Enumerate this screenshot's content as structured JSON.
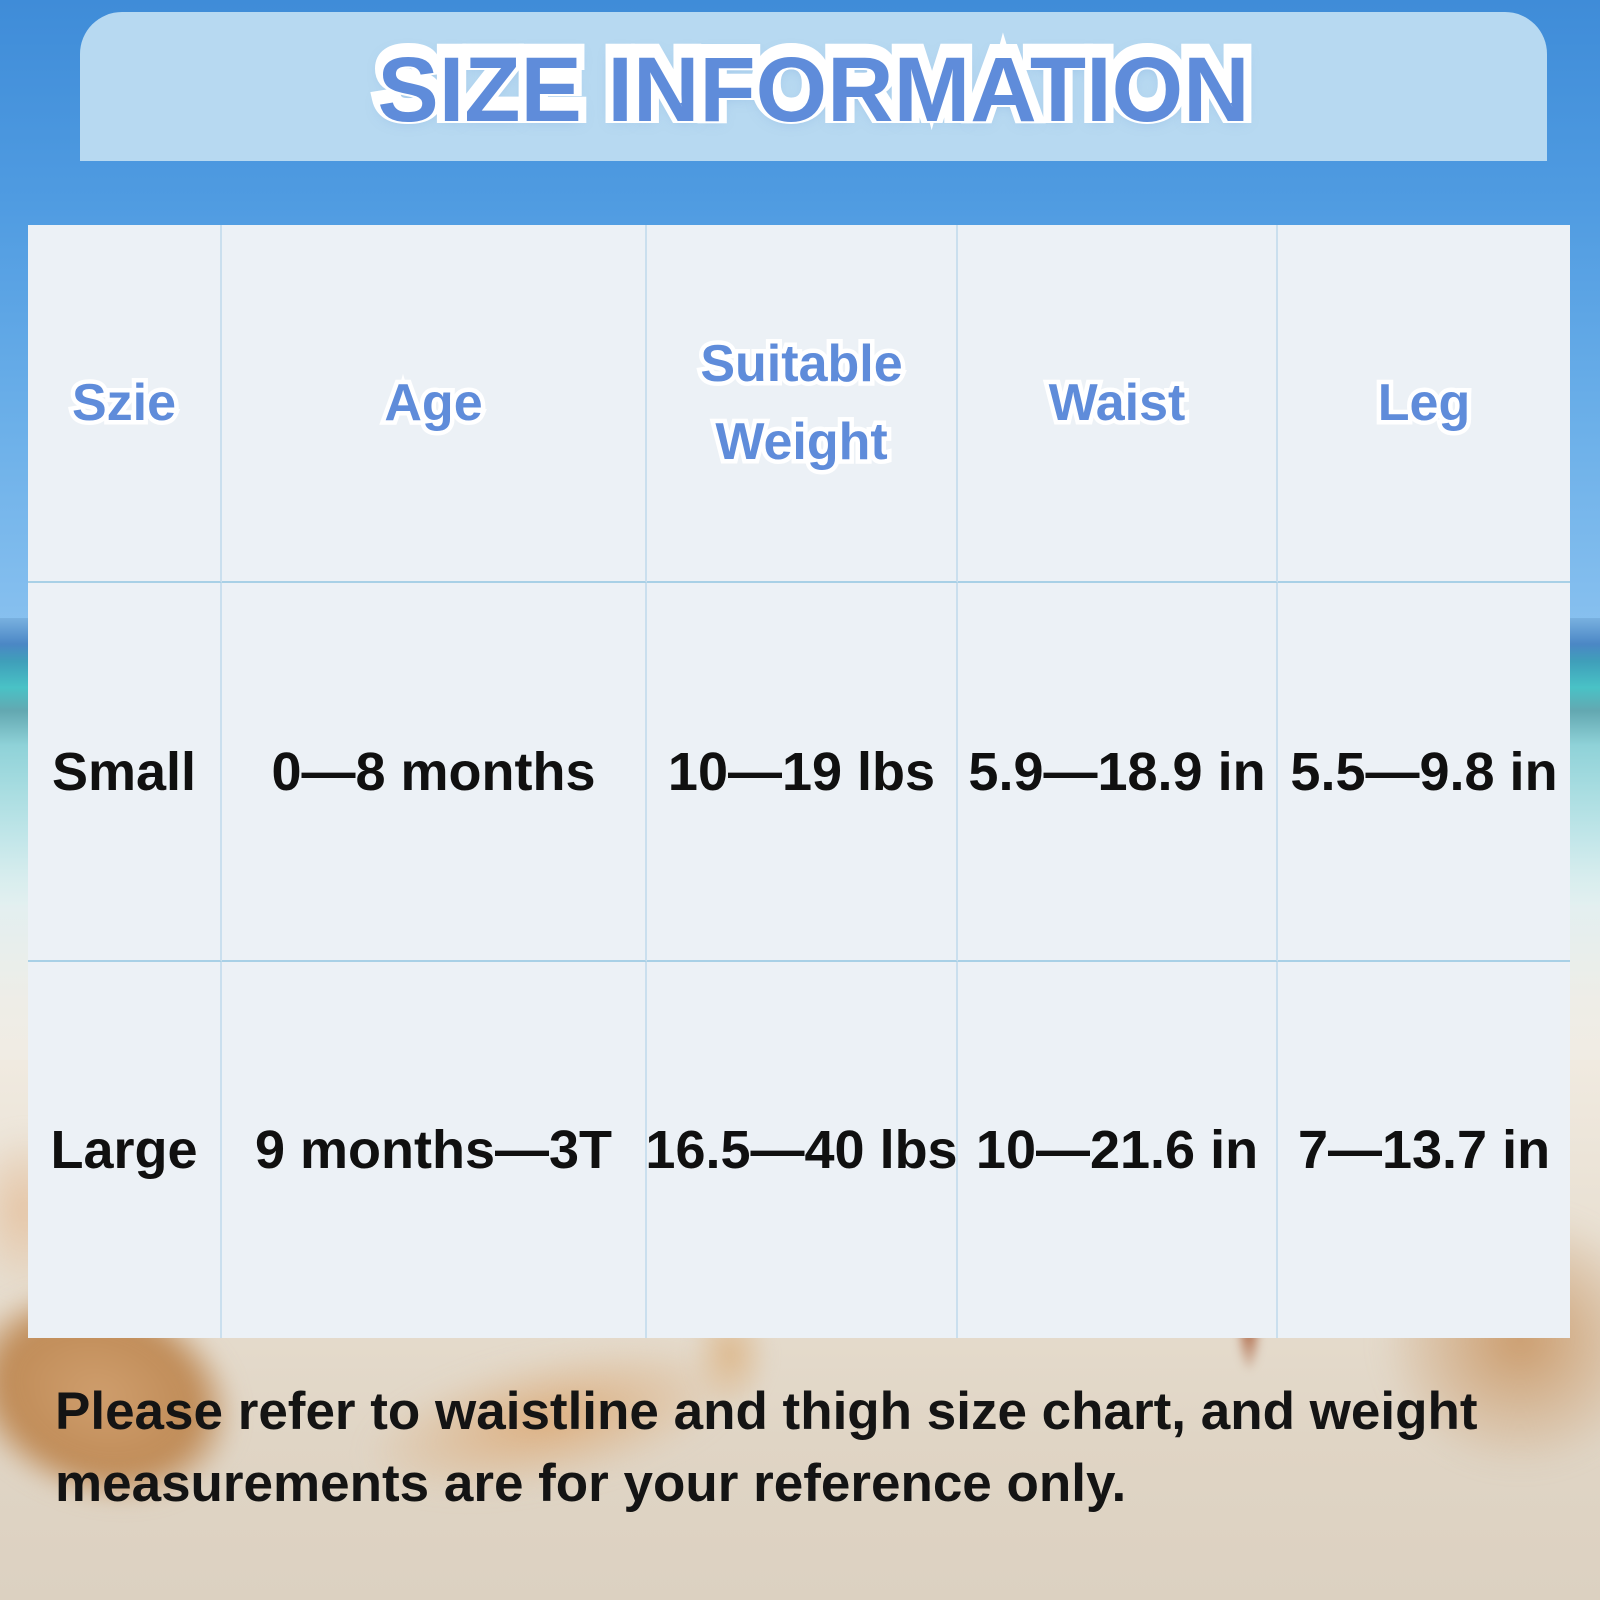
{
  "title": "SIZE INFORMATION",
  "chart_data": {
    "type": "table",
    "title": "SIZE INFORMATION",
    "columns": [
      "Szie",
      "Age",
      "Suitable Weight",
      "Waist",
      "Leg"
    ],
    "rows": [
      [
        "Small",
        "0—8 months",
        "10—19 lbs",
        "5.9—18.9 in",
        "5.5—9.8 in"
      ],
      [
        "Large",
        "9 months—3T",
        "16.5—40 lbs",
        "10—21.6 in",
        "7—13.7 in"
      ]
    ]
  },
  "footer": {
    "line1": "Please refer to waistline and thigh size chart, and weight",
    "line2": "measurements are for your reference only."
  },
  "colors": {
    "accent": "#5f8cda",
    "banner": "#b7d9f1",
    "cell-bg": "#ecf1f6",
    "grid-h": "#a8d0e6",
    "grid-v": "#cadfee",
    "text": "#101010"
  }
}
